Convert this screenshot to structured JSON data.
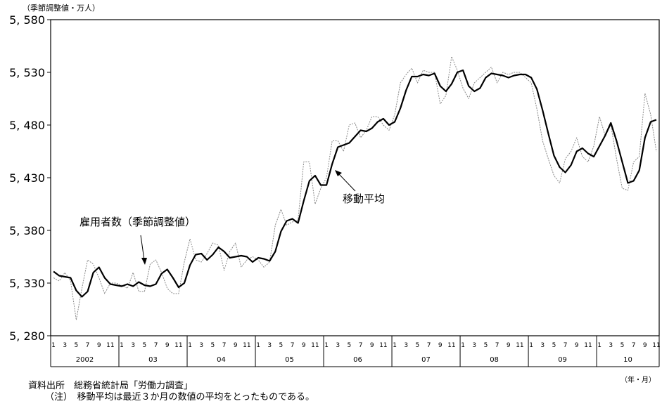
{
  "chart_data": {
    "type": "line",
    "ylabel": "（季節調整値・万人）",
    "x_unit": "（年・月）",
    "categories": [
      "1",
      null,
      "3",
      null,
      "5",
      null,
      "7",
      null,
      "9",
      null,
      "11",
      null,
      "1",
      null,
      "3",
      null,
      "5",
      null,
      "7",
      null,
      "9",
      null,
      "11",
      null,
      "1",
      null,
      "3",
      null,
      "5",
      null,
      "7",
      null,
      "9",
      null,
      "11",
      null,
      "1",
      null,
      "3",
      null,
      "5",
      null,
      "7",
      null,
      "9",
      null,
      "11",
      null,
      "1",
      null,
      "3",
      null,
      "5",
      null,
      "7",
      null,
      "9",
      null,
      "11",
      null,
      "1",
      null,
      "3",
      null,
      "5",
      null,
      "7",
      null,
      "9",
      null,
      "11",
      null,
      "1",
      null,
      "3",
      null,
      "5",
      null,
      "7",
      null,
      "9",
      null,
      "11",
      null,
      "1",
      null,
      "3",
      null,
      "5",
      null,
      "7",
      null,
      "9",
      null,
      "11",
      null,
      "1",
      null,
      "3",
      null,
      "5",
      null,
      "7",
      null,
      "9",
      null,
      "11"
    ],
    "years": [
      "2002",
      "03",
      "04",
      "05",
      "06",
      "07",
      "08",
      "09",
      "10"
    ],
    "ylim": [
      5280,
      5580
    ],
    "yticks": [
      {
        "value": 5280,
        "label": "5, 280"
      },
      {
        "value": 5330,
        "label": "5, 330"
      },
      {
        "value": 5380,
        "label": "5, 380"
      },
      {
        "value": 5430,
        "label": "5, 430"
      },
      {
        "value": 5480,
        "label": "5, 480"
      },
      {
        "value": 5530,
        "label": "5, 530"
      },
      {
        "value": 5580,
        "label": "5, 580"
      }
    ],
    "series": [
      {
        "name": "雇用者数（季節調整値）",
        "color": "#888888",
        "style": "dotted",
        "values": [
          5335,
          5332,
          5340,
          5332,
          5295,
          5325,
          5352,
          5348,
          5335,
          5320,
          5330,
          5330,
          5328,
          5325,
          5340,
          5322,
          5322,
          5348,
          5352,
          5340,
          5325,
          5320,
          5320,
          5350,
          5372,
          5352,
          5350,
          5358,
          5368,
          5366,
          5342,
          5360,
          5368,
          5345,
          5352,
          5355,
          5352,
          5345,
          5350,
          5385,
          5400,
          5385,
          5388,
          5390,
          5445,
          5445,
          5405,
          5420,
          5430,
          5465,
          5465,
          5455,
          5480,
          5482,
          5468,
          5475,
          5488,
          5488,
          5480,
          5475,
          5490,
          5520,
          5528,
          5534,
          5520,
          5532,
          5530,
          5530,
          5500,
          5508,
          5545,
          5532,
          5515,
          5505,
          5520,
          5525,
          5530,
          5535,
          5520,
          5530,
          5528,
          5530,
          5530,
          5525,
          5520,
          5495,
          5465,
          5448,
          5432,
          5425,
          5448,
          5455,
          5468,
          5450,
          5445,
          5460,
          5488,
          5470,
          5480,
          5448,
          5420,
          5418,
          5445,
          5450,
          5510,
          5490,
          5455
        ]
      },
      {
        "name": "移動平均",
        "color": "#000000",
        "style": "solid",
        "values": [
          5341,
          5337,
          5336,
          5335,
          5323,
          5317,
          5322,
          5340,
          5345,
          5335,
          5329,
          5328,
          5327,
          5329,
          5327,
          5331,
          5328,
          5327,
          5329,
          5339,
          5343,
          5335,
          5326,
          5330,
          5347,
          5357,
          5358,
          5352,
          5357,
          5364,
          5360,
          5354,
          5355,
          5356,
          5355,
          5350,
          5354,
          5353,
          5351,
          5360,
          5379,
          5389,
          5391,
          5387,
          5408,
          5427,
          5432,
          5423,
          5423,
          5443,
          5459,
          5461,
          5463,
          5469,
          5475,
          5474,
          5477,
          5483,
          5486,
          5480,
          5483,
          5496,
          5513,
          5526,
          5526,
          5528,
          5527,
          5529,
          5517,
          5512,
          5519,
          5530,
          5532,
          5517,
          5512,
          5515,
          5525,
          5529,
          5528,
          5527,
          5525,
          5527,
          5528,
          5528,
          5525,
          5514,
          5494,
          5472,
          5451,
          5440,
          5435,
          5442,
          5455,
          5458,
          5453,
          5450,
          5460,
          5470,
          5482,
          5465,
          5445,
          5425,
          5427,
          5437,
          5468,
          5483,
          5485
        ]
      }
    ],
    "source": "資料出所　総務省統計局「労働力調査」",
    "note": "（注）　移動平均は最近３か月の数値の平均をとったものである。"
  }
}
